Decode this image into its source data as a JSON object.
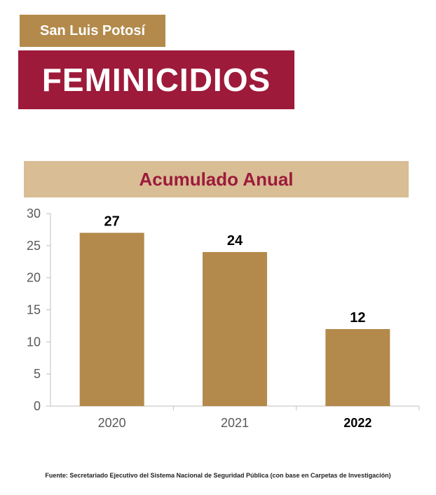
{
  "header": {
    "state": "San Luis Potosí",
    "title": "FEMINICIDIOS"
  },
  "colors": {
    "brand_gold": "#b38a4b",
    "brand_maroon": "#9d1a3a",
    "band_beige": "#d8bd95"
  },
  "chart_data": {
    "type": "bar",
    "title": "Acumulado Anual",
    "categories": [
      "2020",
      "2021",
      "2022"
    ],
    "values": [
      27,
      24,
      12
    ],
    "data_labels": [
      "27",
      "24",
      "12"
    ],
    "yticks": [
      "0",
      "5",
      "10",
      "15",
      "20",
      "25",
      "30"
    ],
    "ylim": [
      0,
      30
    ],
    "grid": false,
    "bar_color": "#b38a4b",
    "highlight_category": "2022"
  },
  "footer": {
    "source": "Fuente: Secretariado Ejecutivo del Sistema Nacional de Seguridad Pública (con base en Carpetas de Investigación)"
  }
}
